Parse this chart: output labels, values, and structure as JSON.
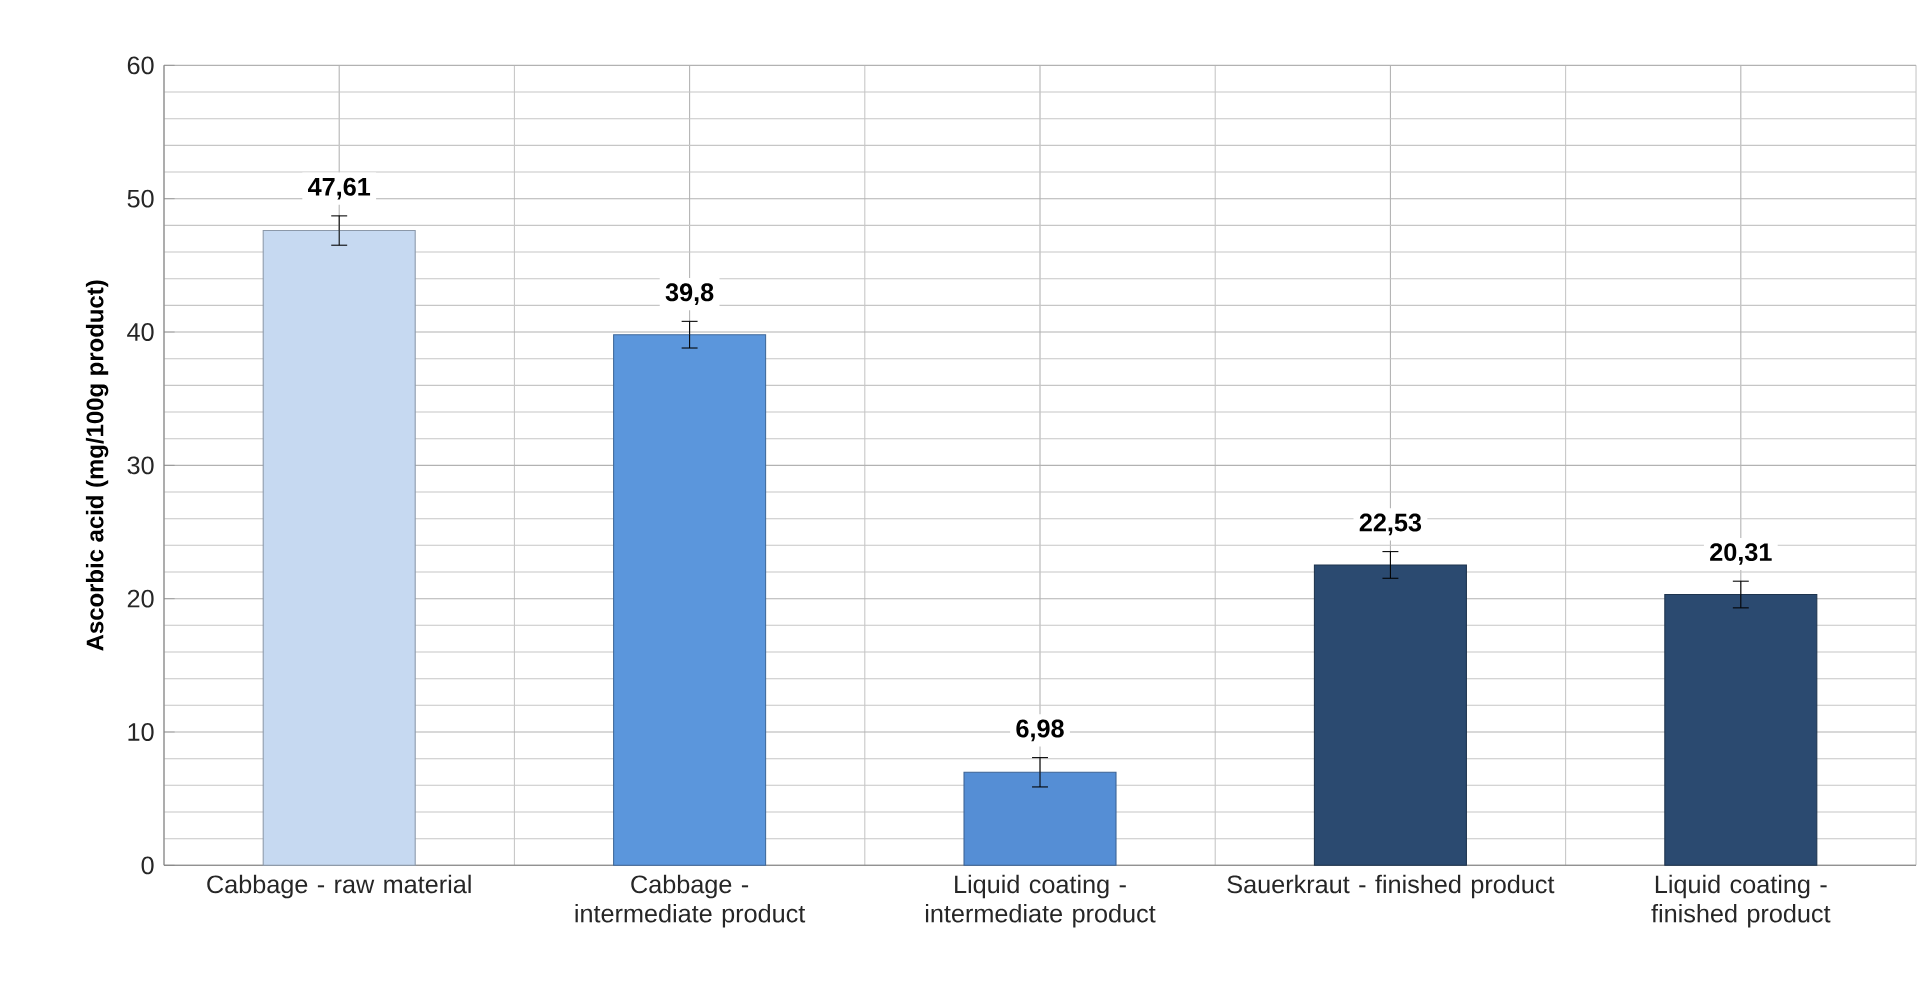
{
  "chart_data": {
    "type": "bar",
    "ylabel": "Ascorbic acid (mg/100g product)",
    "categories": [
      "Cabbage - raw material",
      "Cabbage - intermediate product",
      "Liquid coating - intermediate product",
      "Sauerkraut - finished product",
      "Liquid coating - finished product"
    ],
    "values": [
      47.61,
      39.8,
      6.98,
      22.53,
      20.31
    ],
    "errors": [
      1.1,
      1.0,
      1.1,
      1.0,
      1.0
    ],
    "value_labels": [
      "47,61",
      "39,8",
      "6,98",
      "22,53",
      "20,31"
    ],
    "colors": [
      "#c6d9f1",
      "#5b96dc",
      "#558ed5",
      "#2b4a70",
      "#2b4a70"
    ],
    "ylim": [
      0,
      60
    ],
    "yticks": [
      0,
      10,
      20,
      30,
      40,
      50,
      60
    ],
    "grid": true
  }
}
